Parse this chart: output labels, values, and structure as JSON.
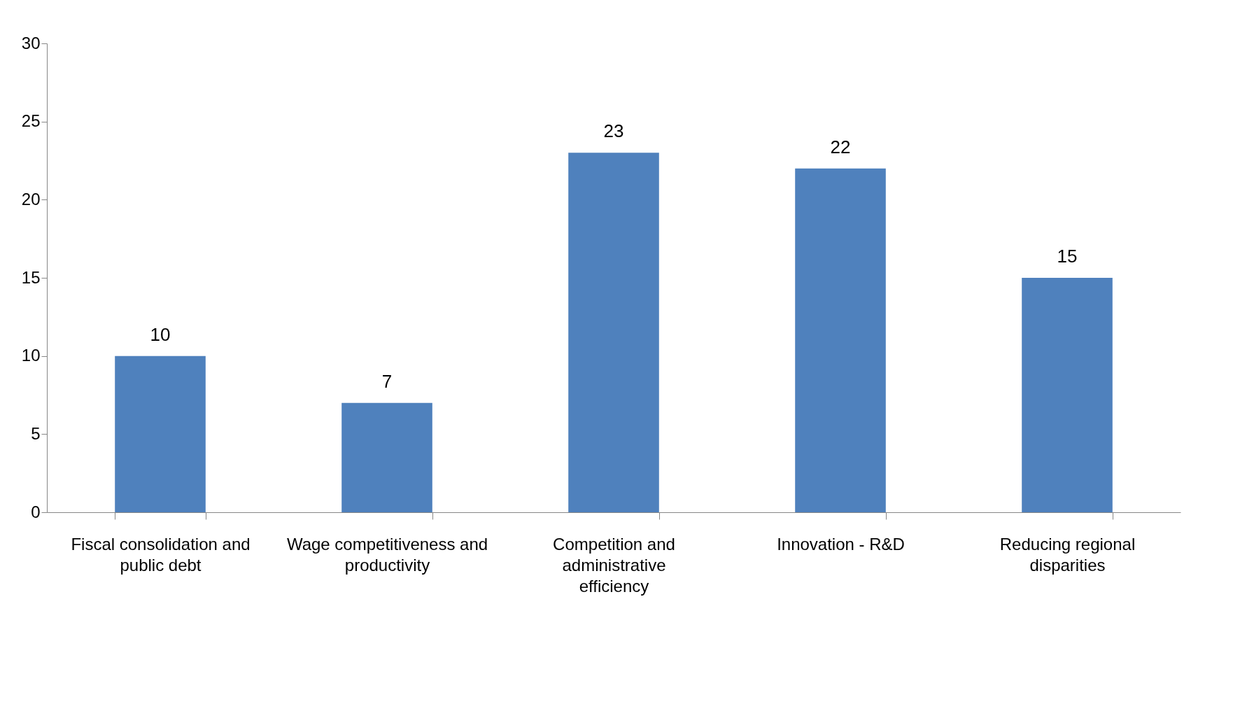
{
  "chart_data": {
    "type": "bar",
    "categories": [
      "Fiscal consolidation and public debt",
      "Wage competitiveness and productivity",
      "Competition and administrative efficiency",
      "Innovation - R&D",
      "Reducing regional disparities"
    ],
    "values": [
      10,
      7,
      23,
      22,
      15
    ],
    "color": "#4f81bd",
    "ylim": [
      0,
      30
    ],
    "yticks": [
      0,
      5,
      10,
      15,
      20,
      25,
      30
    ],
    "grid": false,
    "data_labels": true
  }
}
